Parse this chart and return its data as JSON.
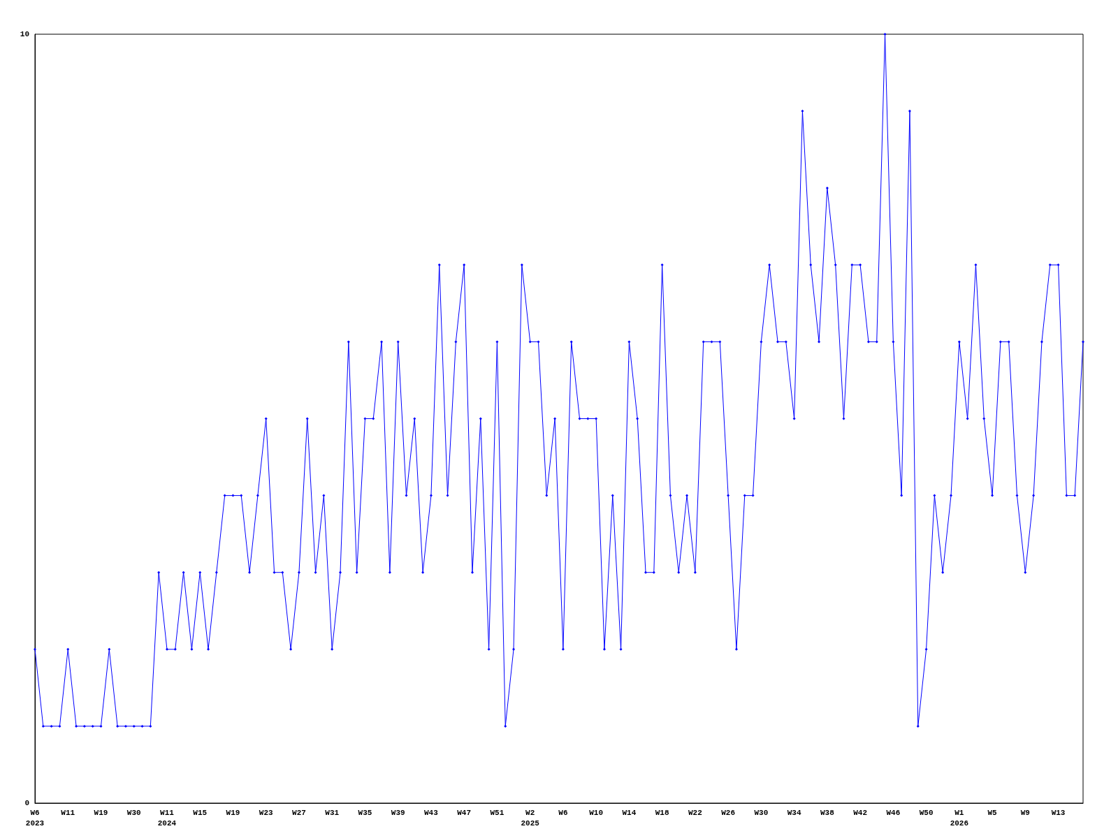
{
  "chart_data": {
    "type": "line",
    "categories": [
      "W6\n2023",
      null,
      null,
      null,
      "W11",
      null,
      null,
      null,
      "W19",
      null,
      null,
      null,
      "W30",
      null,
      null,
      null,
      "W11\n2024",
      null,
      null,
      null,
      "W15",
      null,
      null,
      null,
      "W19",
      null,
      null,
      null,
      "W23",
      null,
      null,
      null,
      "W27",
      null,
      null,
      null,
      "W31",
      null,
      null,
      null,
      "W35",
      null,
      null,
      null,
      "W39",
      null,
      null,
      null,
      "W43",
      null,
      null,
      null,
      "W47",
      null,
      null,
      null,
      "W51",
      null,
      null,
      null,
      "W2\n2025",
      null,
      null,
      null,
      "W6",
      null,
      null,
      null,
      "W10",
      null,
      null,
      null,
      "W14",
      null,
      null,
      null,
      "W18",
      null,
      null,
      null,
      "W22",
      null,
      null,
      null,
      "W26",
      null,
      null,
      null,
      "W30",
      null,
      null,
      null,
      "W34",
      null,
      null,
      null,
      "W38",
      null,
      null,
      null,
      "W42",
      null,
      null,
      null,
      "W46",
      null,
      null,
      null,
      "W50",
      null,
      null,
      null,
      "W1\n2026",
      null,
      null,
      null,
      "W5",
      null,
      null,
      null,
      "W9",
      null,
      null,
      null,
      "W13",
      null,
      null,
      null
    ],
    "series": [
      {
        "color": "#0000ff",
        "values": [
          2,
          1,
          1,
          1,
          2,
          1,
          1,
          1,
          1,
          2,
          1,
          1,
          1,
          1,
          1,
          3,
          2,
          2,
          3,
          2,
          3,
          2,
          3,
          4,
          4,
          4,
          3,
          4,
          5,
          3,
          3,
          2,
          3,
          5,
          3,
          4,
          2,
          3,
          6,
          3,
          5,
          5,
          6,
          3,
          6,
          4,
          5,
          3,
          4,
          7,
          4,
          6,
          7,
          3,
          5,
          2,
          6,
          1,
          2,
          7,
          6,
          6,
          4,
          5,
          2,
          6,
          5,
          5,
          5,
          2,
          4,
          2,
          6,
          5,
          3,
          3,
          7,
          4,
          3,
          4,
          3,
          6,
          6,
          6,
          4,
          2,
          4,
          4,
          6,
          7,
          6,
          6,
          5,
          9,
          7,
          6,
          8,
          7,
          5,
          7,
          7,
          6,
          6,
          10,
          6,
          4,
          9,
          1,
          2,
          4,
          3,
          4,
          6,
          5,
          7,
          5,
          4,
          6,
          6,
          4,
          3,
          4,
          6,
          7,
          7,
          4,
          4,
          6
        ]
      }
    ],
    "ylim": [
      0,
      10
    ],
    "yticks": [
      0,
      10
    ],
    "marker": "diamond",
    "line_style": "solid"
  }
}
